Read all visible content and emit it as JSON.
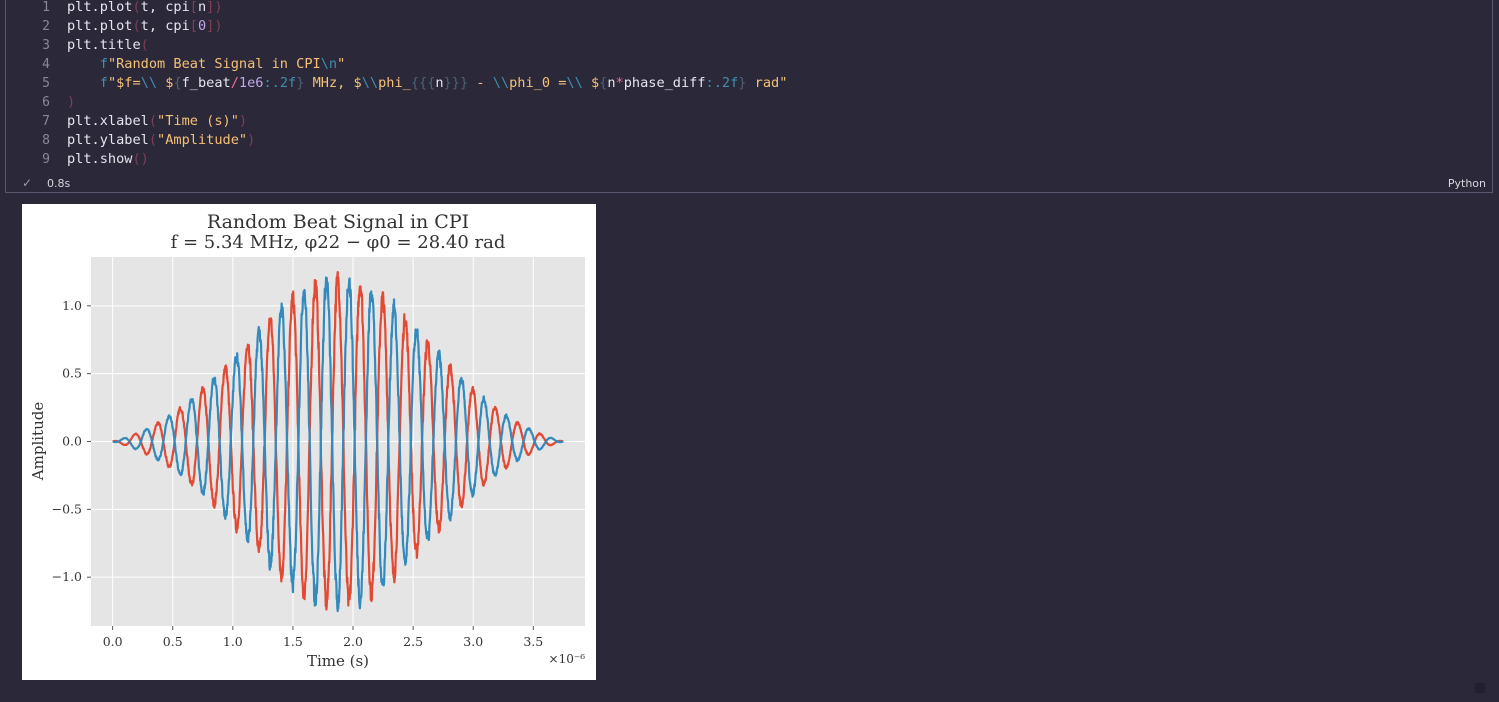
{
  "cell": {
    "lines": [
      {
        "n": "1",
        "tokens": [
          [
            "p1",
            "plt.plot"
          ],
          [
            "bk",
            "("
          ],
          [
            "p1",
            "t, cpi"
          ],
          [
            "bk",
            "["
          ],
          [
            "p1",
            "n"
          ],
          [
            "bk",
            "])"
          ]
        ]
      },
      {
        "n": "2",
        "tokens": [
          [
            "p1",
            "plt.plot"
          ],
          [
            "bk",
            "("
          ],
          [
            "p1",
            "t, cpi"
          ],
          [
            "bk",
            "["
          ],
          [
            "num",
            "0"
          ],
          [
            "bk",
            "])"
          ]
        ]
      },
      {
        "n": "3",
        "tokens": [
          [
            "p1",
            "plt.title"
          ],
          [
            "bk",
            "("
          ]
        ]
      },
      {
        "n": "4",
        "tokens": [
          [
            "p1",
            "    "
          ],
          [
            "esc",
            "f"
          ],
          [
            "str",
            "\"Random Beat Signal in CPI"
          ],
          [
            "esc",
            "\\n"
          ],
          [
            "str",
            "\""
          ]
        ]
      },
      {
        "n": "5",
        "tokens": [
          [
            "p1",
            "    "
          ],
          [
            "esc",
            "f"
          ],
          [
            "str",
            "\"$f="
          ],
          [
            "esc",
            "\\\\"
          ],
          [
            "str",
            " $"
          ],
          [
            "br2",
            "{"
          ],
          [
            "p1",
            "f_beat"
          ],
          [
            "op",
            "/"
          ],
          [
            "num",
            "1e6"
          ],
          [
            "fmt",
            ":.2f"
          ],
          [
            "br2",
            "}"
          ],
          [
            "str",
            " MHz, $"
          ],
          [
            "esc",
            "\\\\"
          ],
          [
            "str",
            "phi_"
          ],
          [
            "br2",
            "{{{"
          ],
          [
            "p1",
            "n"
          ],
          [
            "br2",
            "}}}"
          ],
          [
            "str",
            " - "
          ],
          [
            "esc",
            "\\\\"
          ],
          [
            "str",
            "phi_0 ="
          ],
          [
            "esc",
            "\\\\"
          ],
          [
            "str",
            " $"
          ],
          [
            "br2",
            "{"
          ],
          [
            "p1",
            "n"
          ],
          [
            "op",
            "*"
          ],
          [
            "p1",
            "phase_diff"
          ],
          [
            "fmt",
            ":.2f"
          ],
          [
            "br2",
            "}"
          ],
          [
            "str",
            " rad\""
          ]
        ]
      },
      {
        "n": "6",
        "tokens": [
          [
            "bk",
            ")"
          ]
        ]
      },
      {
        "n": "7",
        "tokens": [
          [
            "p1",
            "plt.xlabel"
          ],
          [
            "bk",
            "("
          ],
          [
            "str",
            "\"Time (s)\""
          ],
          [
            "bk",
            ")"
          ]
        ]
      },
      {
        "n": "8",
        "tokens": [
          [
            "p1",
            "plt.ylabel"
          ],
          [
            "bk",
            "("
          ],
          [
            "str",
            "\"Amplitude\""
          ],
          [
            "bk",
            ")"
          ]
        ]
      },
      {
        "n": "9",
        "tokens": [
          [
            "p1",
            "plt.show"
          ],
          [
            "bk",
            "()"
          ]
        ]
      }
    ],
    "status_time": "0.8s",
    "language": "Python",
    "check_icon": "check-icon"
  },
  "chart_data": {
    "type": "line",
    "title_line1": "Random Beat Signal in CPI",
    "title_line2": "f = 5.34 MHz, φ22 − φ0 = 28.40 rad",
    "xlabel": "Time (s)",
    "ylabel": "Amplitude",
    "x_multiplier": "×10⁻⁶",
    "xlim": [
      -0.18,
      3.93
    ],
    "ylim": [
      -1.36,
      1.36
    ],
    "xticks": [
      "0.0",
      "0.5",
      "1.0",
      "1.5",
      "2.0",
      "2.5",
      "3.0",
      "3.5"
    ],
    "xtick_values": [
      0,
      0.5,
      1.0,
      1.5,
      2.0,
      2.5,
      3.0,
      3.5
    ],
    "yticks": [
      "−1.0",
      "−0.5",
      "0.0",
      "0.5",
      "1.0"
    ],
    "ytick_values": [
      -1.0,
      -0.5,
      0.0,
      0.5,
      1.0
    ],
    "grid": true,
    "series": [
      {
        "color": "#e24a33",
        "x_start": 0.0,
        "x_end": 3.75,
        "center": 1.875,
        "sigma": 0.75,
        "amplitude": 1.2,
        "freq_mhz": 5.34,
        "phase": 0.0
      },
      {
        "color": "#348abd",
        "x_start": 0.0,
        "x_end": 3.75,
        "center": 1.875,
        "sigma": 0.75,
        "amplitude": 1.2,
        "freq_mhz": 5.34,
        "phase": 3.14
      }
    ]
  }
}
